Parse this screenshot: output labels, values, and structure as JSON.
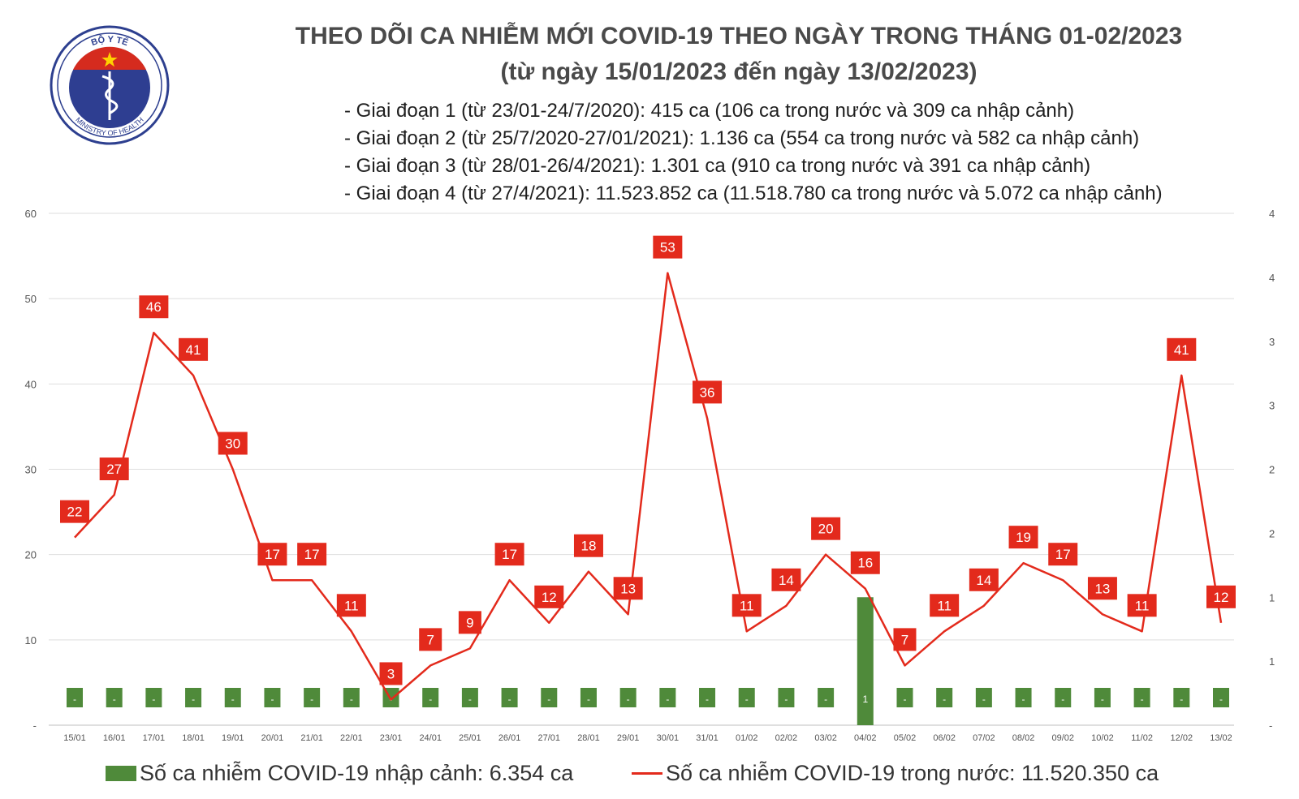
{
  "header": {
    "logo_text_top": "BỘ Y TẾ",
    "logo_text_bottom": "MINISTRY OF HEALTH",
    "title": "THEO DÕI CA NHIỄM MỚI COVID-19 THEO NGÀY TRONG THÁNG 01-02/2023",
    "subtitle": "(từ ngày 15/01/2023 đến ngày 13/02/2023)",
    "stages": [
      "- Giai đoạn 1 (từ 23/01-24/7/2020): 415 ca (106 ca trong nước và 309 ca nhập cảnh)",
      "- Giai đoạn 2 (từ 25/7/2020-27/01/2021): 1.136 ca (554 ca trong nước và 582 ca nhập cảnh)",
      "- Giai đoạn 3 (từ 28/01-26/4/2021): 1.301 ca (910 ca trong nước và 391 ca nhập cảnh)",
      "- Giai đoạn 4 (từ 27/4/2021): 11.523.852 ca (11.518.780 ca trong nước và 5.072 ca nhập cảnh)"
    ]
  },
  "chart_data": {
    "type": "line",
    "categories": [
      "15/01",
      "16/01",
      "17/01",
      "18/01",
      "19/01",
      "20/01",
      "21/01",
      "22/01",
      "23/01",
      "24/01",
      "25/01",
      "26/01",
      "27/01",
      "28/01",
      "29/01",
      "30/01",
      "31/01",
      "01/02",
      "02/02",
      "03/02",
      "04/02",
      "05/02",
      "06/02",
      "07/02",
      "08/02",
      "09/02",
      "10/02",
      "11/02",
      "12/02",
      "13/02"
    ],
    "series": [
      {
        "name": "Số ca nhiễm COVID-19 trong nước: 11.520.350 ca",
        "kind": "line",
        "axis": "left",
        "color": "#e32a1c",
        "values": [
          22,
          27,
          46,
          41,
          30,
          17,
          17,
          11,
          3,
          7,
          9,
          17,
          12,
          18,
          13,
          53,
          36,
          11,
          14,
          20,
          16,
          7,
          11,
          14,
          19,
          17,
          13,
          11,
          41,
          12
        ]
      },
      {
        "name": "Số ca nhiễm COVID-19 nhập cảnh: 6.354 ca",
        "kind": "bar",
        "axis": "right",
        "color": "#4f8a3a",
        "values": [
          null,
          null,
          null,
          null,
          null,
          null,
          null,
          null,
          null,
          null,
          null,
          null,
          null,
          null,
          null,
          null,
          null,
          null,
          null,
          null,
          1,
          null,
          null,
          null,
          null,
          null,
          null,
          null,
          null,
          null
        ],
        "labels": [
          "-",
          "-",
          "-",
          "-",
          "-",
          "-",
          "-",
          "-",
          "-",
          "-",
          "-",
          "-",
          "-",
          "-",
          "-",
          "-",
          "-",
          "-",
          "-",
          "-",
          "1",
          "-",
          "-",
          "-",
          "-",
          "-",
          "-",
          "-",
          "-",
          "-"
        ]
      }
    ],
    "y_left": {
      "ticks": [
        "-",
        "10",
        "20",
        "30",
        "40",
        "50",
        "60"
      ],
      "ylim": [
        0,
        60
      ]
    },
    "y_right": {
      "ticks": [
        "-",
        "1",
        "1",
        "2",
        "2",
        "3",
        "3",
        "4",
        "4"
      ],
      "ylim": [
        0,
        4
      ]
    },
    "grid": true,
    "legend": "bottom"
  }
}
